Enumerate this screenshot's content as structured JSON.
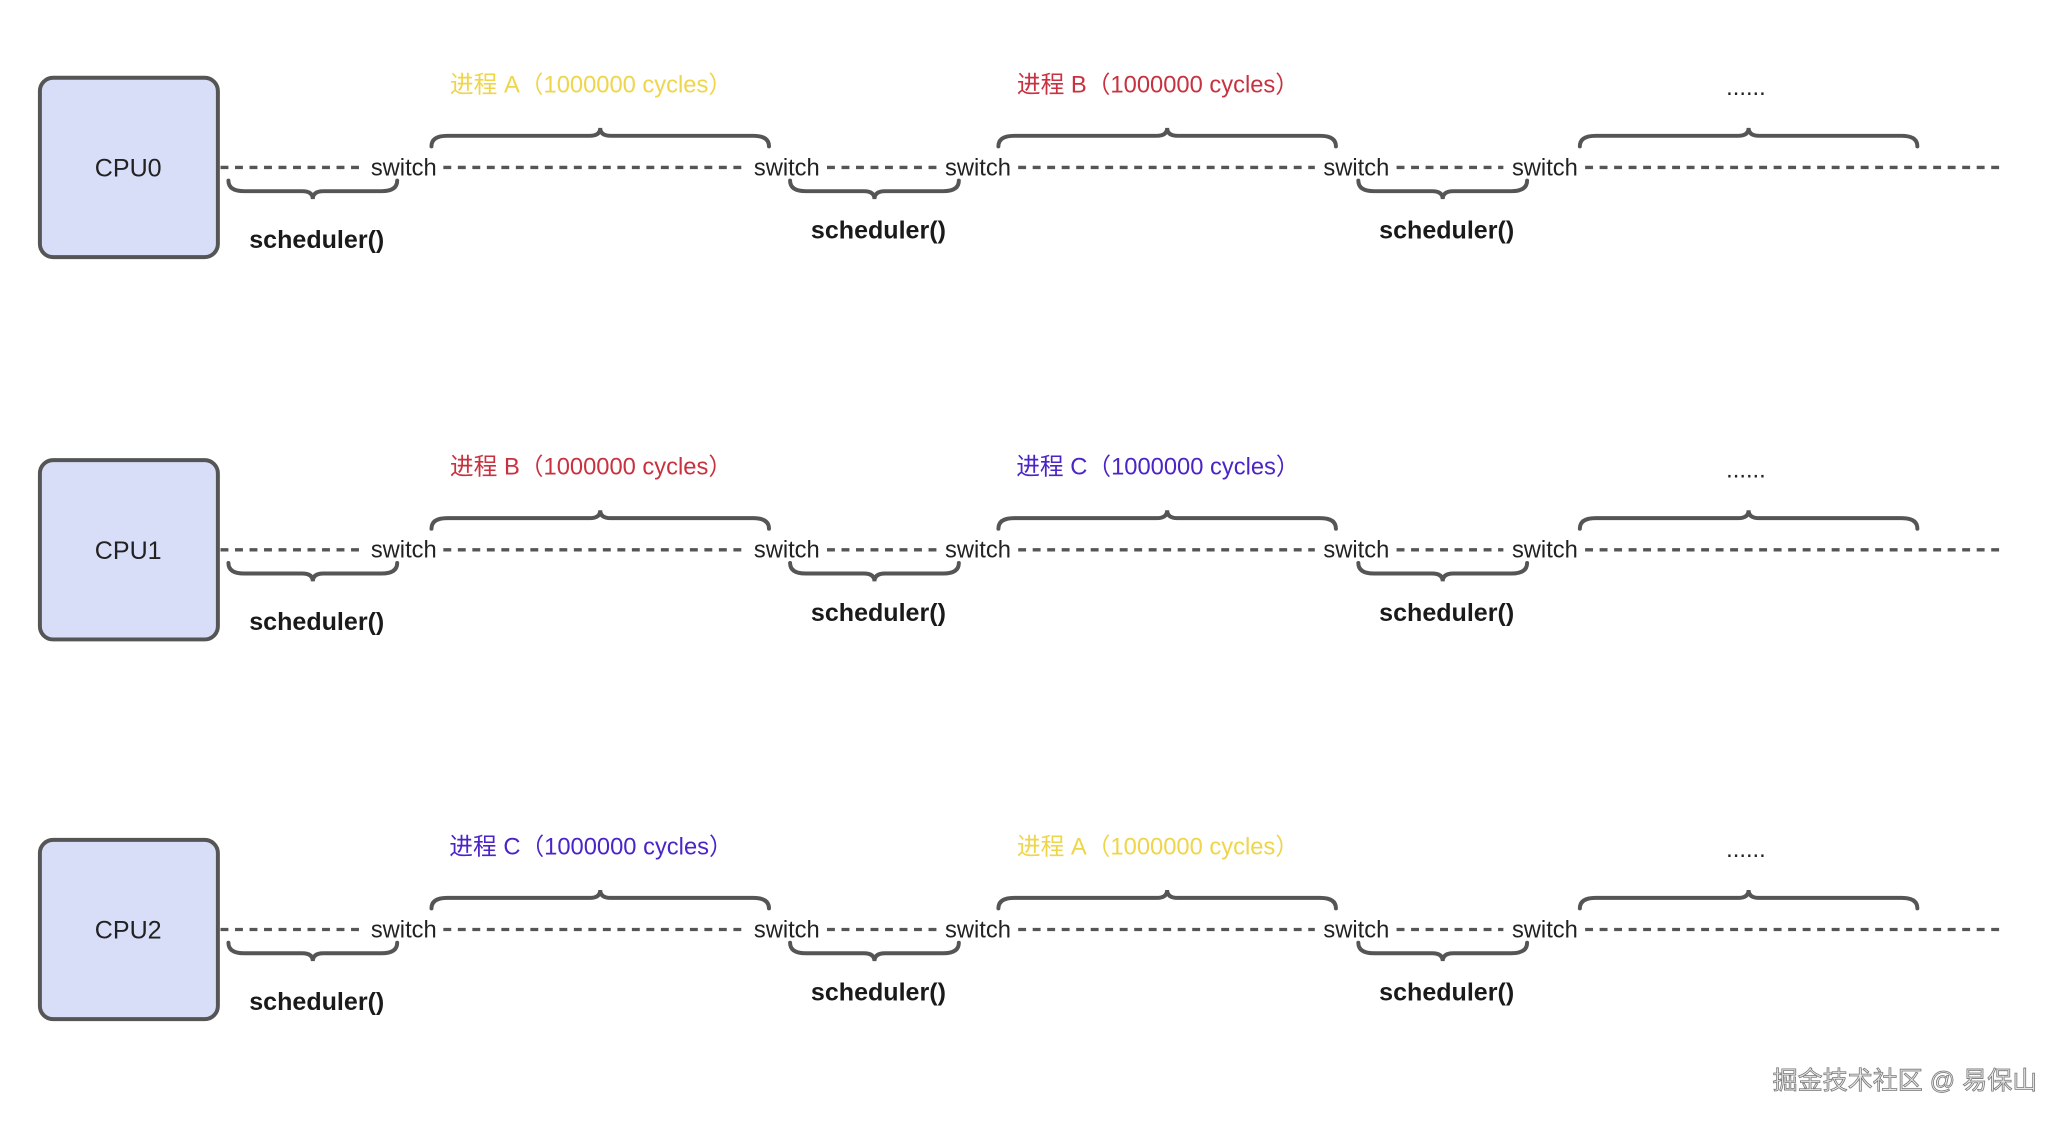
{
  "colors": {
    "process_A": "#efd54a",
    "process_B": "#c8313f",
    "process_C": "#4b24c8",
    "cpu_fill": "#d8def7",
    "stroke": "#555555"
  },
  "switch_label": "switch",
  "scheduler_label": "scheduler()",
  "ellipsis": "......",
  "rows": [
    {
      "cpu": "CPU0",
      "processes": [
        {
          "label": "进程 A（1000000 cycles）",
          "color_key": "process_A"
        },
        {
          "label": "进程 B（1000000 cycles）",
          "color_key": "process_B"
        }
      ]
    },
    {
      "cpu": "CPU1",
      "processes": [
        {
          "label": "进程 B（1000000 cycles）",
          "color_key": "process_B"
        },
        {
          "label": "进程 C（1000000 cycles）",
          "color_key": "process_C"
        }
      ]
    },
    {
      "cpu": "CPU2",
      "processes": [
        {
          "label": "进程 C（1000000 cycles）",
          "color_key": "process_C"
        },
        {
          "label": "进程 A（1000000 cycles）",
          "color_key": "process_A"
        }
      ]
    }
  ],
  "watermark": "掘金技术社区 @ 易保山"
}
